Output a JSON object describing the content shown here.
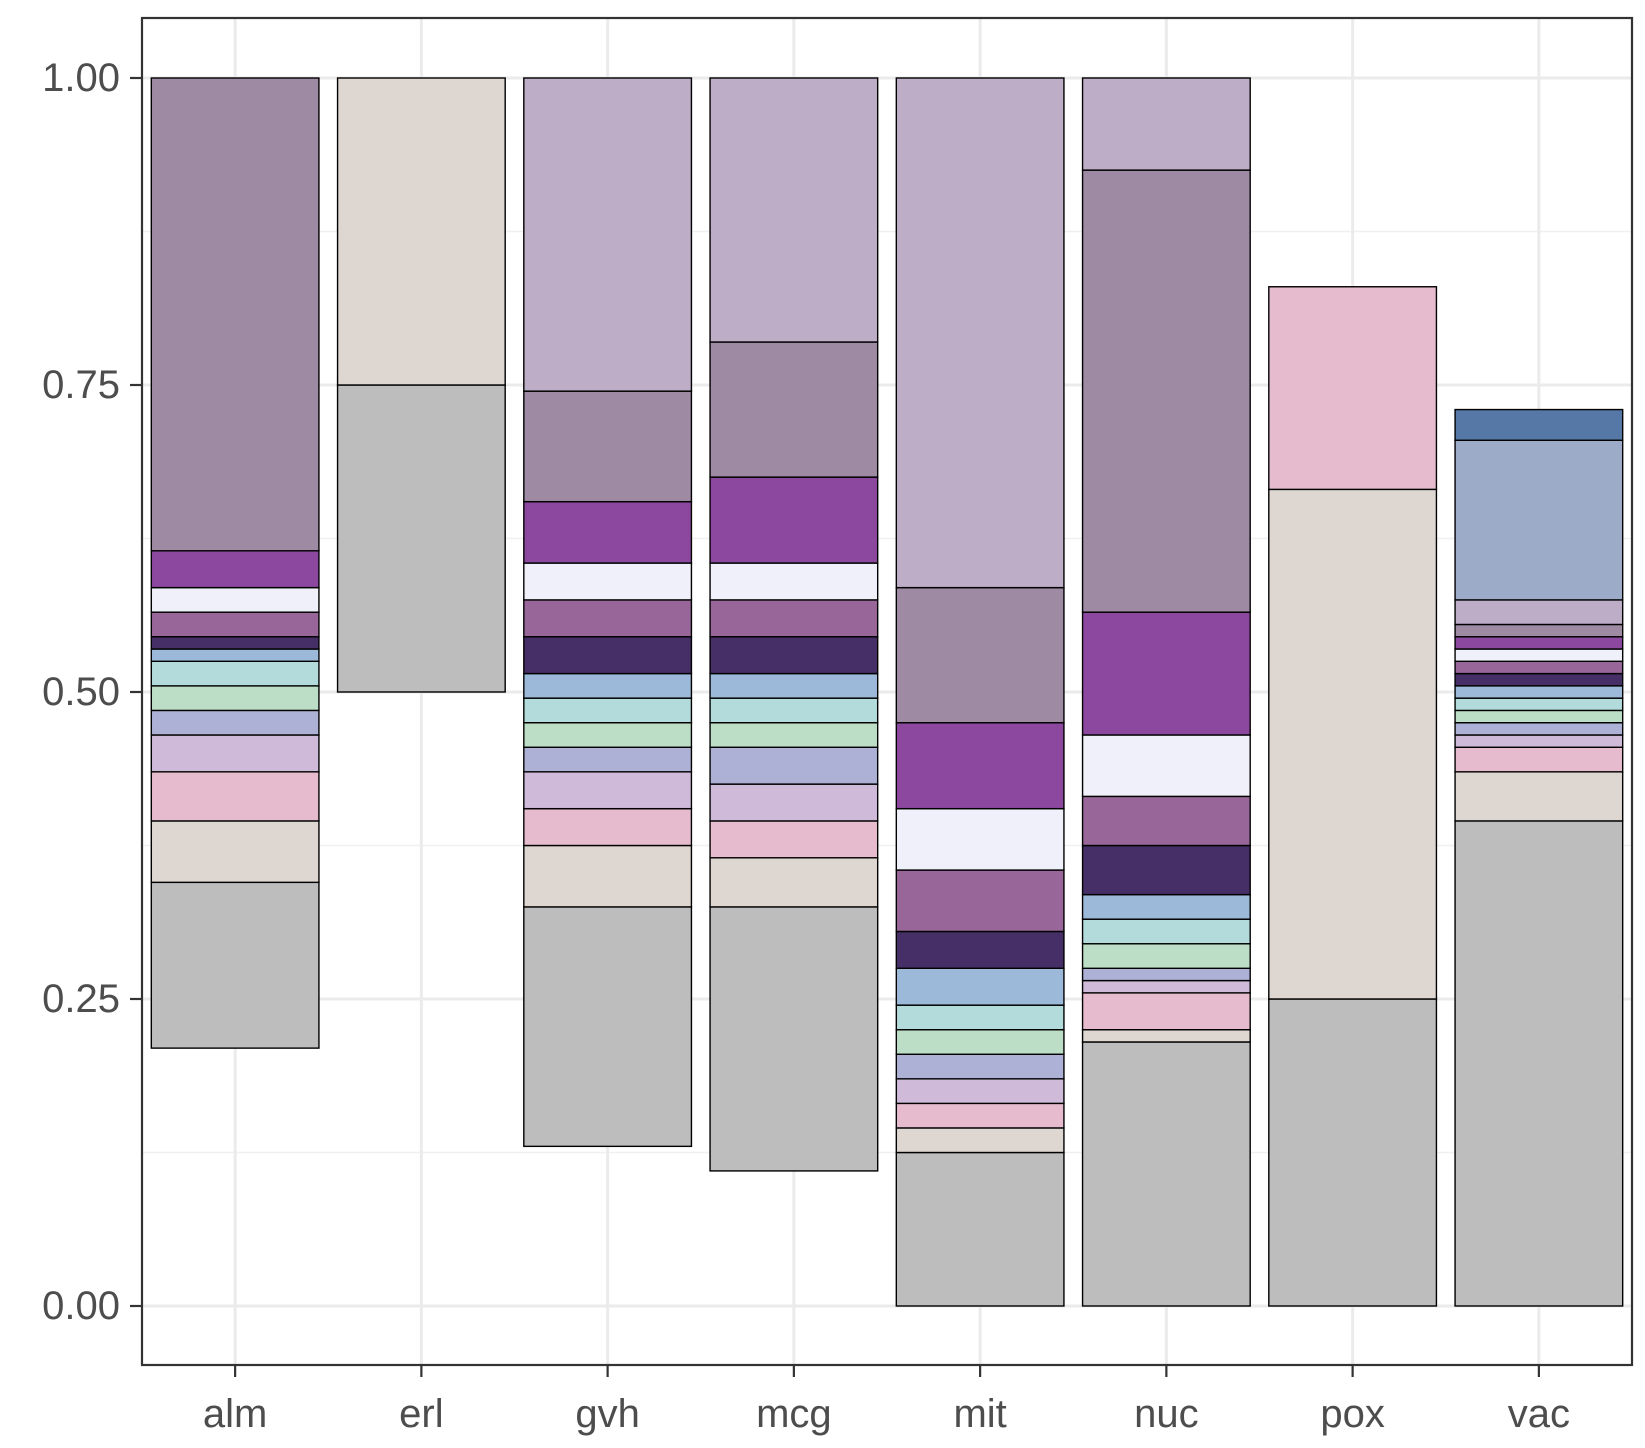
{
  "chart_data": {
    "type": "bar",
    "stacked": true,
    "title": "",
    "xlabel": "",
    "ylabel": "",
    "ylim": [
      -0.05,
      1.05
    ],
    "y_ticks": [
      0.0,
      0.25,
      0.5,
      0.75,
      1.0
    ],
    "y_tick_labels": [
      "0.00",
      "0.25",
      "0.50",
      "0.75",
      "1.00"
    ],
    "grid": true,
    "legend": "none",
    "categories": [
      "alm",
      "erl",
      "gvh",
      "mcg",
      "mit",
      "nuc",
      "pox",
      "vac"
    ],
    "palette": [
      "#BDBDBD",
      "#DED6D0",
      "#E6BBCD",
      "#CFBBD9",
      "#ADB1D6",
      "#BDDEC6",
      "#B3DBDB",
      "#9DB9D9",
      "#452F66",
      "#996699",
      "#F0F0FA",
      "#8C479E",
      "#9E8AA3",
      "#BDADC7",
      "#9CABC7",
      "#5678A6"
    ],
    "bars": [
      {
        "category": "alm",
        "segments": [
          {
            "from": 0.21,
            "to": 0.345,
            "color": "#BDBDBD"
          },
          {
            "from": 0.345,
            "to": 0.395,
            "color": "#DED6D0"
          },
          {
            "from": 0.395,
            "to": 0.435,
            "color": "#E6BBCD"
          },
          {
            "from": 0.435,
            "to": 0.465,
            "color": "#CFBBD9"
          },
          {
            "from": 0.465,
            "to": 0.485,
            "color": "#ADB1D6"
          },
          {
            "from": 0.485,
            "to": 0.505,
            "color": "#BDDEC6"
          },
          {
            "from": 0.505,
            "to": 0.525,
            "color": "#B3DBDB"
          },
          {
            "from": 0.525,
            "to": 0.535,
            "color": "#9DB9D9"
          },
          {
            "from": 0.535,
            "to": 0.545,
            "color": "#452F66"
          },
          {
            "from": 0.545,
            "to": 0.565,
            "color": "#996699"
          },
          {
            "from": 0.565,
            "to": 0.585,
            "color": "#F0F0FA"
          },
          {
            "from": 0.585,
            "to": 0.615,
            "color": "#8C479E"
          },
          {
            "from": 0.615,
            "to": 1.0,
            "color": "#9E8AA3"
          }
        ]
      },
      {
        "category": "erl",
        "segments": [
          {
            "from": 0.5,
            "to": 0.75,
            "color": "#BDBDBD"
          },
          {
            "from": 0.75,
            "to": 1.0,
            "color": "#DED6D0"
          }
        ]
      },
      {
        "category": "gvh",
        "segments": [
          {
            "from": 0.13,
            "to": 0.325,
            "color": "#BDBDBD"
          },
          {
            "from": 0.325,
            "to": 0.375,
            "color": "#DED6D0"
          },
          {
            "from": 0.375,
            "to": 0.405,
            "color": "#E6BBCD"
          },
          {
            "from": 0.405,
            "to": 0.435,
            "color": "#CFBBD9"
          },
          {
            "from": 0.435,
            "to": 0.455,
            "color": "#ADB1D6"
          },
          {
            "from": 0.455,
            "to": 0.475,
            "color": "#BDDEC6"
          },
          {
            "from": 0.475,
            "to": 0.495,
            "color": "#B3DBDB"
          },
          {
            "from": 0.495,
            "to": 0.515,
            "color": "#9DB9D9"
          },
          {
            "from": 0.515,
            "to": 0.545,
            "color": "#452F66"
          },
          {
            "from": 0.545,
            "to": 0.575,
            "color": "#996699"
          },
          {
            "from": 0.575,
            "to": 0.605,
            "color": "#F0F0FA"
          },
          {
            "from": 0.605,
            "to": 0.655,
            "color": "#8C479E"
          },
          {
            "from": 0.655,
            "to": 0.745,
            "color": "#9E8AA3"
          },
          {
            "from": 0.745,
            "to": 1.0,
            "color": "#BDADC7"
          }
        ]
      },
      {
        "category": "mcg",
        "segments": [
          {
            "from": 0.11,
            "to": 0.325,
            "color": "#BDBDBD"
          },
          {
            "from": 0.325,
            "to": 0.365,
            "color": "#DED6D0"
          },
          {
            "from": 0.365,
            "to": 0.395,
            "color": "#E6BBCD"
          },
          {
            "from": 0.395,
            "to": 0.425,
            "color": "#CFBBD9"
          },
          {
            "from": 0.425,
            "to": 0.455,
            "color": "#ADB1D6"
          },
          {
            "from": 0.455,
            "to": 0.475,
            "color": "#BDDEC6"
          },
          {
            "from": 0.475,
            "to": 0.495,
            "color": "#B3DBDB"
          },
          {
            "from": 0.495,
            "to": 0.515,
            "color": "#9DB9D9"
          },
          {
            "from": 0.515,
            "to": 0.545,
            "color": "#452F66"
          },
          {
            "from": 0.545,
            "to": 0.575,
            "color": "#996699"
          },
          {
            "from": 0.575,
            "to": 0.605,
            "color": "#F0F0FA"
          },
          {
            "from": 0.605,
            "to": 0.675,
            "color": "#8C479E"
          },
          {
            "from": 0.675,
            "to": 0.785,
            "color": "#9E8AA3"
          },
          {
            "from": 0.785,
            "to": 1.0,
            "color": "#BDADC7"
          }
        ]
      },
      {
        "category": "mit",
        "segments": [
          {
            "from": 0.0,
            "to": 0.125,
            "color": "#BDBDBD"
          },
          {
            "from": 0.125,
            "to": 0.145,
            "color": "#DED6D0"
          },
          {
            "from": 0.145,
            "to": 0.165,
            "color": "#E6BBCD"
          },
          {
            "from": 0.165,
            "to": 0.185,
            "color": "#CFBBD9"
          },
          {
            "from": 0.185,
            "to": 0.205,
            "color": "#ADB1D6"
          },
          {
            "from": 0.205,
            "to": 0.225,
            "color": "#BDDEC6"
          },
          {
            "from": 0.225,
            "to": 0.245,
            "color": "#B3DBDB"
          },
          {
            "from": 0.245,
            "to": 0.275,
            "color": "#9DB9D9"
          },
          {
            "from": 0.275,
            "to": 0.305,
            "color": "#452F66"
          },
          {
            "from": 0.305,
            "to": 0.355,
            "color": "#996699"
          },
          {
            "from": 0.355,
            "to": 0.405,
            "color": "#F0F0FA"
          },
          {
            "from": 0.405,
            "to": 0.475,
            "color": "#8C479E"
          },
          {
            "from": 0.475,
            "to": 0.585,
            "color": "#9E8AA3"
          },
          {
            "from": 0.585,
            "to": 1.0,
            "color": "#BDADC7"
          }
        ]
      },
      {
        "category": "nuc",
        "segments": [
          {
            "from": 0.0,
            "to": 0.215,
            "color": "#BDBDBD"
          },
          {
            "from": 0.215,
            "to": 0.225,
            "color": "#DED6D0"
          },
          {
            "from": 0.225,
            "to": 0.255,
            "color": "#E6BBCD"
          },
          {
            "from": 0.255,
            "to": 0.265,
            "color": "#CFBBD9"
          },
          {
            "from": 0.265,
            "to": 0.275,
            "color": "#ADB1D6"
          },
          {
            "from": 0.275,
            "to": 0.295,
            "color": "#BDDEC6"
          },
          {
            "from": 0.295,
            "to": 0.315,
            "color": "#B3DBDB"
          },
          {
            "from": 0.315,
            "to": 0.335,
            "color": "#9DB9D9"
          },
          {
            "from": 0.335,
            "to": 0.375,
            "color": "#452F66"
          },
          {
            "from": 0.375,
            "to": 0.415,
            "color": "#996699"
          },
          {
            "from": 0.415,
            "to": 0.465,
            "color": "#F0F0FA"
          },
          {
            "from": 0.465,
            "to": 0.565,
            "color": "#8C479E"
          },
          {
            "from": 0.565,
            "to": 0.925,
            "color": "#9E8AA3"
          },
          {
            "from": 0.925,
            "to": 1.0,
            "color": "#BDADC7"
          }
        ]
      },
      {
        "category": "pox",
        "segments": [
          {
            "from": 0.0,
            "to": 0.25,
            "color": "#BDBDBD"
          },
          {
            "from": 0.25,
            "to": 0.665,
            "color": "#DED6D0"
          },
          {
            "from": 0.665,
            "to": 0.83,
            "color": "#E6BBCD"
          }
        ]
      },
      {
        "category": "vac",
        "segments": [
          {
            "from": 0.0,
            "to": 0.395,
            "color": "#BDBDBD"
          },
          {
            "from": 0.395,
            "to": 0.435,
            "color": "#DED6D0"
          },
          {
            "from": 0.435,
            "to": 0.455,
            "color": "#E6BBCD"
          },
          {
            "from": 0.455,
            "to": 0.465,
            "color": "#CFBBD9"
          },
          {
            "from": 0.465,
            "to": 0.475,
            "color": "#ADB1D6"
          },
          {
            "from": 0.475,
            "to": 0.485,
            "color": "#BDDEC6"
          },
          {
            "from": 0.485,
            "to": 0.495,
            "color": "#B3DBDB"
          },
          {
            "from": 0.495,
            "to": 0.505,
            "color": "#9DB9D9"
          },
          {
            "from": 0.505,
            "to": 0.515,
            "color": "#452F66"
          },
          {
            "from": 0.515,
            "to": 0.525,
            "color": "#996699"
          },
          {
            "from": 0.525,
            "to": 0.535,
            "color": "#F0F0FA"
          },
          {
            "from": 0.535,
            "to": 0.545,
            "color": "#8C479E"
          },
          {
            "from": 0.545,
            "to": 0.555,
            "color": "#9E8AA3"
          },
          {
            "from": 0.555,
            "to": 0.575,
            "color": "#BDADC7"
          },
          {
            "from": 0.575,
            "to": 0.705,
            "color": "#9CABC7"
          },
          {
            "from": 0.705,
            "to": 0.73,
            "color": "#5678A6"
          }
        ]
      }
    ]
  }
}
